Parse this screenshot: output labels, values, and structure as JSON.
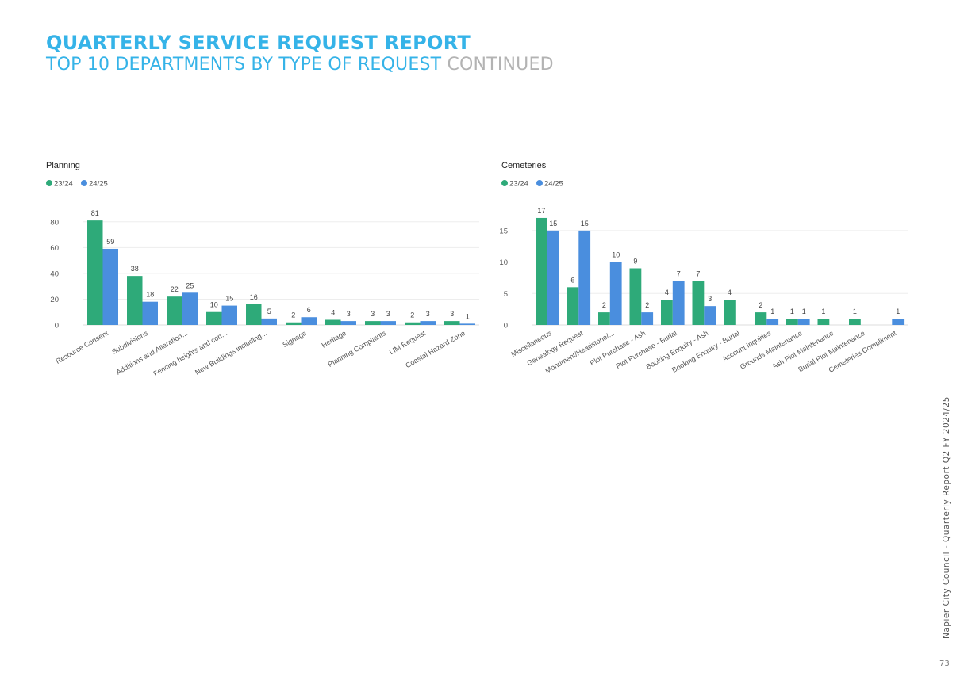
{
  "header": {
    "title": "QUARTERLY SERVICE REQUEST REPORT",
    "subtitle_main": "TOP 10 DEPARTMENTS BY TYPE OF REQUEST",
    "subtitle_suffix": "CONTINUED"
  },
  "footer": {
    "side_text": "Napier City Council - Quarterly Report Q2 FY 2024/25",
    "page_number": "73"
  },
  "colors": {
    "title": "#35b3e8",
    "series_2324": "#2eaa79",
    "series_2425": "#4a8ede",
    "continued": "#b3b3b3"
  },
  "chart_data": [
    {
      "type": "bar",
      "title": "Planning",
      "categories": [
        "Resource Consent",
        "Subdivisions",
        "Additions and Alteration...",
        "Fencing heights and con...",
        "New Buildings including...",
        "Signage",
        "Heritage",
        "Planning Complaints",
        "LIM Request",
        "Coastal Hazard Zone"
      ],
      "series": [
        {
          "name": "23/24",
          "color": "#2eaa79",
          "values": [
            81,
            38,
            22,
            10,
            16,
            2,
            4,
            3,
            2,
            3
          ]
        },
        {
          "name": "24/25",
          "color": "#4a8ede",
          "values": [
            59,
            18,
            25,
            15,
            5,
            6,
            3,
            3,
            3,
            1
          ]
        }
      ],
      "yticks": [
        0,
        20,
        40,
        60,
        80
      ],
      "ylim": [
        0,
        86
      ],
      "legend": "top-left",
      "grid": true
    },
    {
      "type": "bar",
      "title": "Cemeteries",
      "categories": [
        "Miscellaneous",
        "Genealogy Request",
        "Monument/Headstone/...",
        "Plot Purchase - Ash",
        "Plot Purchase - Burial",
        "Booking Enquiry - Ash",
        "Booking Enquiry - Burial",
        "Account Inquiries",
        "Grounds Maintenance",
        "Ash Plot Maintenance",
        "Burial Plot Maintenance",
        "Cemeteries Compliment"
      ],
      "series": [
        {
          "name": "23/24",
          "color": "#2eaa79",
          "values": [
            17,
            6,
            2,
            9,
            4,
            7,
            4,
            2,
            1,
            1,
            1,
            null
          ]
        },
        {
          "name": "24/25",
          "color": "#4a8ede",
          "values": [
            15,
            15,
            10,
            2,
            7,
            3,
            null,
            1,
            1,
            null,
            null,
            1
          ]
        }
      ],
      "yticks": [
        0,
        5,
        10,
        15
      ],
      "ylim": [
        0,
        18
      ],
      "legend": "top-left",
      "grid": true
    }
  ]
}
